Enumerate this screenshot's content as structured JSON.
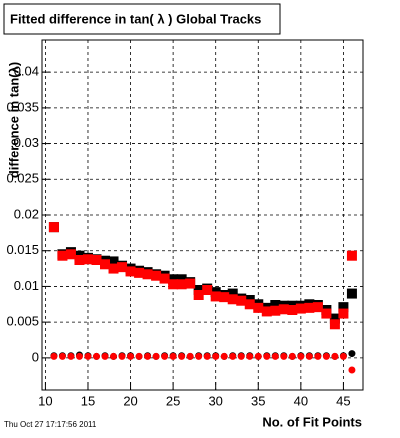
{
  "chart_data": {
    "type": "scatter",
    "title": "Fitted difference in tan( λ )  Global Tracks",
    "x_label": "No. of Fit Points",
    "y_label": "difference in tan(λ)",
    "footer": "Thu Oct 27 17:17:56 2011",
    "x": [
      11,
      12,
      13,
      14,
      15,
      16,
      17,
      18,
      19,
      20,
      21,
      22,
      23,
      24,
      25,
      26,
      27,
      28,
      29,
      30,
      31,
      32,
      33,
      34,
      35,
      36,
      37,
      38,
      39,
      40,
      41,
      42,
      43,
      44,
      45,
      46
    ],
    "series": [
      {
        "color": "#000000",
        "marker": "square",
        "values": [
          0.0183,
          0.0145,
          0.0148,
          0.0143,
          0.014,
          0.0138,
          0.0136,
          0.0135,
          0.0129,
          0.0125,
          0.0122,
          0.012,
          0.0117,
          0.0115,
          0.011,
          0.011,
          0.0106,
          0.0095,
          0.0097,
          0.0092,
          0.0088,
          0.009,
          0.0083,
          0.0081,
          0.0075,
          0.007,
          0.0074,
          0.0073,
          0.0073,
          0.0073,
          0.0075,
          0.0074,
          0.0067,
          0.0055,
          0.0071,
          0.009
        ]
      },
      {
        "color": "#ff0000",
        "marker": "square",
        "values": [
          0.0183,
          0.0143,
          0.0145,
          0.0137,
          0.0138,
          0.0137,
          0.0131,
          0.0125,
          0.0127,
          0.0121,
          0.0119,
          0.0117,
          0.0115,
          0.0111,
          0.0103,
          0.0103,
          0.0104,
          0.0088,
          0.0095,
          0.0086,
          0.0085,
          0.0082,
          0.008,
          0.0075,
          0.007,
          0.0065,
          0.0066,
          0.0068,
          0.0067,
          0.0069,
          0.007,
          0.0071,
          0.0062,
          0.0047,
          0.0062,
          0.0143
        ]
      },
      {
        "color": "#000000",
        "marker": "circle",
        "values": [
          0.0003,
          0.0003,
          0.0003,
          0.0004,
          0.0003,
          0.0002,
          0.0003,
          0.0002,
          0.0003,
          0.0003,
          0.0002,
          0.0003,
          0.0002,
          0.0003,
          0.0003,
          0.0003,
          0.0002,
          0.0003,
          0.0003,
          0.0003,
          0.0002,
          0.0003,
          0.0003,
          0.0003,
          0.0002,
          0.0003,
          0.0003,
          0.0003,
          0.0002,
          0.0003,
          0.0003,
          0.0003,
          0.0003,
          0.0002,
          0.0003,
          0.0006
        ]
      },
      {
        "color": "#ff0000",
        "marker": "circle",
        "values": [
          0.0002,
          0.0002,
          0.0002,
          0.0002,
          0.0002,
          0.0002,
          0.0002,
          0.0002,
          0.0002,
          0.0002,
          0.0002,
          0.0002,
          0.0002,
          0.0002,
          0.0002,
          0.0002,
          0.0002,
          0.0002,
          0.0002,
          0.0002,
          0.0002,
          0.0002,
          0.0002,
          0.0002,
          0.0002,
          0.0002,
          0.0002,
          0.0002,
          0.0002,
          0.0002,
          0.0002,
          0.0002,
          0.0002,
          0.0002,
          0.0002,
          -0.0017
        ]
      }
    ],
    "xlim": [
      9.6,
      47.3
    ],
    "xticks": [
      10,
      15,
      20,
      25,
      30,
      35,
      40,
      45
    ],
    "ylim": [
      -0.0045,
      0.0445
    ],
    "yticks": [
      0,
      0.005,
      0.01,
      0.015,
      0.02,
      0.025,
      0.03,
      0.035,
      0.04
    ],
    "grid": true
  }
}
